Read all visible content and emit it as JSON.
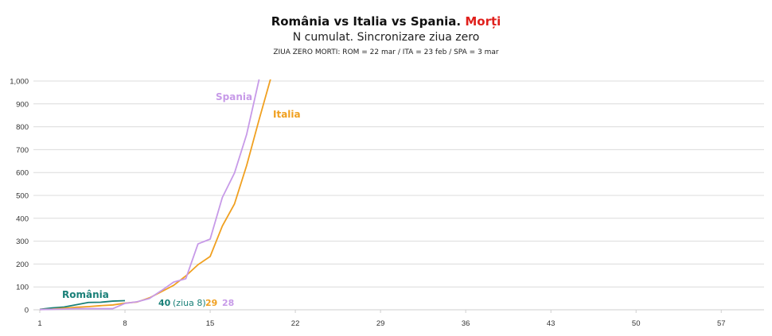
{
  "chart_data": {
    "type": "line",
    "title": "România vs Italia vs Spania.",
    "title_highlight": "Morți",
    "subtitle": "N cumulat. Sincronizare ziua zero",
    "note": "ZIUA ZERO MORTI: ROM = 22 mar / ITA = 23 feb / SPA = 3 mar",
    "xlabel": "",
    "ylabel": "",
    "xlim": [
      1,
      61
    ],
    "ylim": [
      0,
      1000
    ],
    "x_ticks": [
      1,
      8,
      15,
      22,
      29,
      36,
      43,
      50,
      57
    ],
    "y_ticks": [
      0,
      100,
      200,
      300,
      400,
      500,
      600,
      700,
      800,
      900,
      1000
    ],
    "y_tick_labels": [
      "0",
      "100",
      "200",
      "300",
      "400",
      "500",
      "600",
      "700",
      "800",
      "900",
      "1,000"
    ],
    "grid": true,
    "series": [
      {
        "name": "România",
        "color": "#1a8078",
        "x": [
          1,
          2,
          3,
          4,
          5,
          6,
          7,
          8
        ],
        "values": [
          2,
          8,
          12,
          22,
          32,
          33,
          38,
          40
        ]
      },
      {
        "name": "Italia",
        "color": "#f0a020",
        "x": [
          1,
          2,
          3,
          4,
          5,
          6,
          7,
          8,
          9,
          10,
          11,
          12,
          13,
          14,
          15,
          16,
          17,
          18,
          19,
          20
        ],
        "values": [
          1,
          3,
          7,
          11,
          14,
          18,
          21,
          29,
          34,
          52,
          79,
          107,
          148,
          197,
          233,
          366,
          463,
          631,
          827,
          1016
        ]
      },
      {
        "name": "Spania",
        "color": "#c79ae8",
        "x": [
          1,
          2,
          3,
          4,
          5,
          6,
          7,
          8,
          9,
          10,
          11,
          12,
          13,
          14,
          15,
          16,
          17,
          18,
          19,
          20
        ],
        "values": [
          1,
          2,
          3,
          5,
          5,
          5,
          5,
          28,
          35,
          49,
          84,
          121,
          136,
          288,
          309,
          491,
          598,
          767,
          1002,
          1326
        ]
      }
    ],
    "annotations": {
      "romania_value": "40",
      "romania_day": "(ziua 8)",
      "italia_value": "29",
      "spania_value": "28"
    }
  }
}
